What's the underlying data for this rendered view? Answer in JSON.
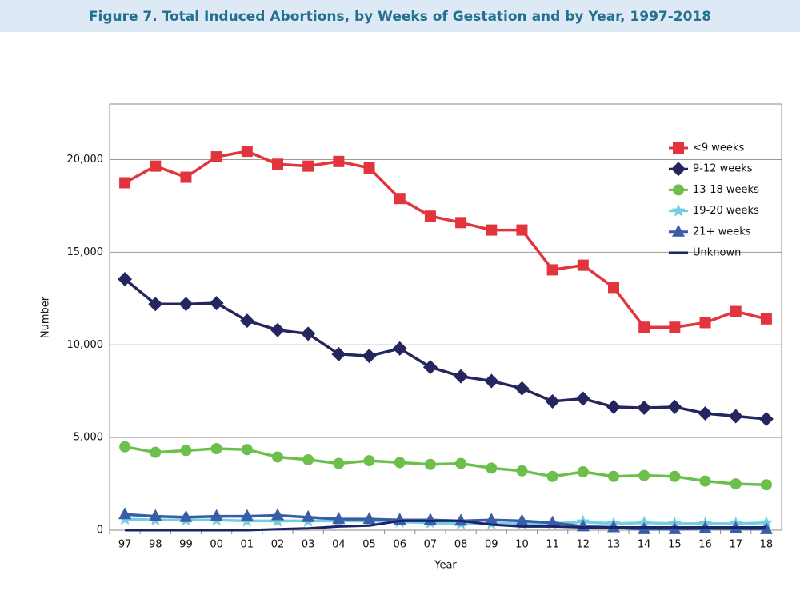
{
  "chart_data": {
    "type": "line",
    "title": "Figure 7. Total Induced Abortions, by Weeks of Gestation and by Year, 1997-2018",
    "x_label": "Year",
    "y_label": "Number",
    "categories": [
      "97",
      "98",
      "99",
      "00",
      "01",
      "02",
      "03",
      "04",
      "05",
      "06",
      "07",
      "08",
      "09",
      "10",
      "11",
      "12",
      "13",
      "14",
      "15",
      "16",
      "17",
      "18"
    ],
    "ylim": [
      0,
      23000
    ],
    "yticks": [
      0,
      {
        "value": 5000,
        "label": "5,000"
      },
      {
        "value": 10000,
        "label": "10,000"
      },
      {
        "value": 15000,
        "label": "15,000"
      },
      {
        "value": 20000,
        "label": "20,000"
      }
    ],
    "grid": true,
    "legend": "upper right",
    "series": [
      {
        "name": "<9 weeks",
        "color": "#e2343c",
        "marker": "square",
        "values": [
          18750,
          19650,
          19050,
          20150,
          20450,
          19750,
          19650,
          19900,
          19550,
          17900,
          16950,
          16600,
          16200,
          16200,
          14050,
          14300,
          13100,
          10950,
          10950,
          11200,
          11800,
          11400
        ]
      },
      {
        "name": "9-12 weeks",
        "color": "#25265e",
        "marker": "diamond",
        "values": [
          13550,
          12200,
          12200,
          12250,
          11300,
          10800,
          10600,
          9500,
          9400,
          9800,
          8800,
          8300,
          8050,
          7650,
          6950,
          7100,
          6650,
          6600,
          6650,
          6300,
          6150,
          6000
        ]
      },
      {
        "name": "13-18 weeks",
        "color": "#6cbf4b",
        "marker": "circle",
        "values": [
          4500,
          4200,
          4300,
          4400,
          4350,
          3950,
          3800,
          3600,
          3750,
          3650,
          3550,
          3600,
          3350,
          3200,
          2900,
          3150,
          2900,
          2950,
          2900,
          2650,
          2500,
          2450
        ]
      },
      {
        "name": "19-20 weeks",
        "color": "#72cfe0",
        "marker": "star",
        "values": [
          600,
          550,
          550,
          550,
          500,
          500,
          500,
          500,
          500,
          450,
          400,
          350,
          350,
          350,
          350,
          450,
          350,
          400,
          350,
          350,
          350,
          400
        ]
      },
      {
        "name": "21+ weeks",
        "color": "#3a5da8",
        "marker": "triangle",
        "values": [
          850,
          750,
          700,
          750,
          750,
          800,
          700,
          600,
          600,
          550,
          550,
          500,
          550,
          500,
          400,
          200,
          150,
          50,
          50,
          100,
          100,
          50
        ]
      },
      {
        "name": "Unknown",
        "color": "#1c2366",
        "marker": "none",
        "values": [
          0,
          0,
          0,
          0,
          0,
          50,
          100,
          200,
          250,
          500,
          500,
          500,
          300,
          200,
          200,
          150,
          150,
          150,
          150,
          150,
          150,
          150
        ]
      }
    ]
  }
}
